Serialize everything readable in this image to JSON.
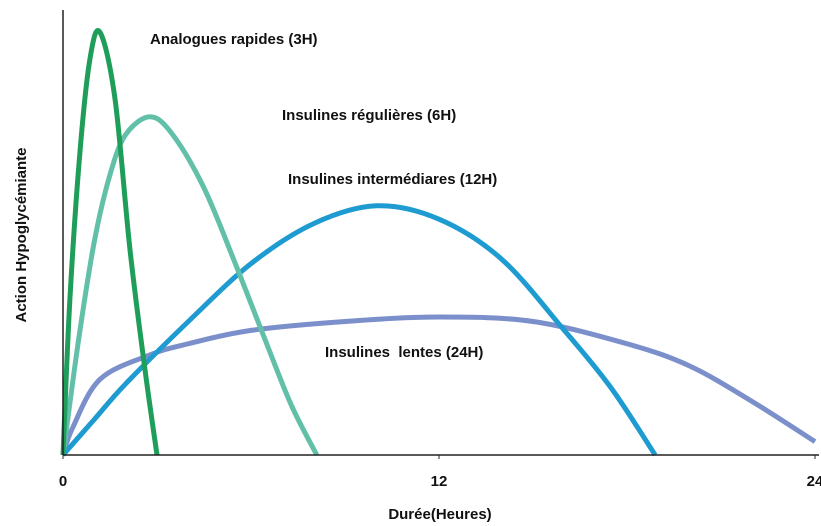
{
  "chart_data": {
    "type": "line",
    "x_label": "Durée(Heures)",
    "y_label": "Action Hypoglycémiante",
    "xlim": [
      0,
      24
    ],
    "xticks": [
      0,
      12,
      24
    ],
    "ylim": [
      0,
      100
    ],
    "series": [
      {
        "name": "Analogues rapides (3H)",
        "color": "#1f9e5a",
        "x": [
          0,
          0.22,
          0.54,
          0.86,
          1.18,
          1.66,
          2.14,
          2.62,
          3.0
        ],
        "values": [
          0,
          35,
          68,
          89,
          95,
          80,
          46,
          19,
          0
        ]
      },
      {
        "name": "Insulines régulières (6H)",
        "color": "#62c0a9",
        "x": [
          0,
          0.5,
          1.0,
          1.5,
          2.0,
          2.78,
          3.5,
          4.5,
          5.5,
          6.5,
          7.3,
          8.1
        ],
        "values": [
          0,
          26,
          48,
          63,
          72,
          76,
          72,
          60,
          43,
          25,
          11,
          0
        ]
      },
      {
        "name": "Insulines intermédiares (12H)",
        "color": "#1e9bd0",
        "x": [
          0,
          1,
          2,
          4,
          6,
          8,
          10,
          12,
          14,
          16,
          17.5,
          18.9
        ],
        "values": [
          0,
          8,
          16,
          30,
          43,
          52,
          56,
          53,
          44,
          28,
          15,
          0
        ]
      },
      {
        "name": "Insulines  lentes (24H)",
        "color": "#7b8fcb",
        "x": [
          0,
          0.3,
          1.18,
          2.78,
          4,
          6,
          9,
          12,
          15,
          18,
          20,
          22,
          24
        ],
        "values": [
          0,
          6,
          17,
          22.5,
          25,
          28,
          30,
          31,
          30,
          25,
          20,
          12,
          3
        ]
      }
    ]
  }
}
